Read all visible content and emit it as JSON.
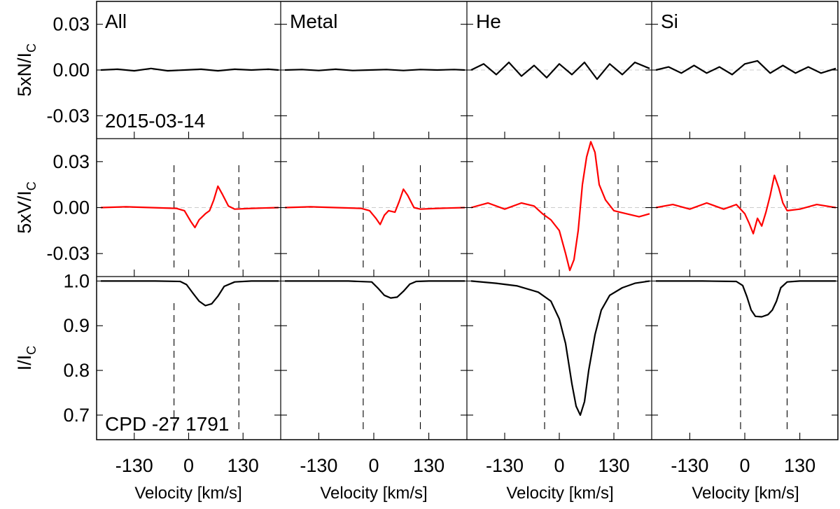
{
  "chart_data": {
    "type": "line",
    "star": "CPD -27 1791",
    "date": "2015-03-14",
    "columns": [
      "All",
      "Metal",
      "He",
      "Si"
    ],
    "xlabel": "Velocity [km/s]",
    "xticks": [
      -130,
      0,
      130
    ],
    "xlim": [
      -220,
      220
    ],
    "rows": [
      {
        "key": "N",
        "ylabel_main": "5xN/I",
        "ylabel_sub": "C",
        "ylim": [
          -0.045,
          0.045
        ],
        "yticks": [
          0.03,
          0.0,
          -0.03
        ],
        "ytick_labels": [
          "0.03",
          "0.00",
          "-0.03"
        ],
        "color": "#000000"
      },
      {
        "key": "V",
        "ylabel_main": "5xV/I",
        "ylabel_sub": "C",
        "ylim": [
          -0.045,
          0.045
        ],
        "yticks": [
          0.03,
          0.0,
          -0.03
        ],
        "ytick_labels": [
          "0.03",
          "0.00",
          "-0.03"
        ],
        "color": "#ff0000"
      },
      {
        "key": "I",
        "ylabel_main": "I/I",
        "ylabel_sub": "C",
        "ylim": [
          0.645,
          1.01
        ],
        "yticks": [
          1.0,
          0.9,
          0.8,
          0.7
        ],
        "ytick_labels": [
          "1.0",
          "0.9",
          "0.8",
          "0.7"
        ],
        "color": "#000000"
      }
    ],
    "integration_limits": {
      "All": [
        -35,
        120
      ],
      "Metal": [
        -25,
        110
      ],
      "He": [
        -35,
        140
      ],
      "Si": [
        -10,
        100
      ]
    },
    "series": {
      "All": {
        "N": {
          "x": [
            -210,
            -170,
            -130,
            -90,
            -50,
            -10,
            30,
            70,
            110,
            150,
            190,
            215
          ],
          "y": [
            0.0,
            0.0005,
            -0.0005,
            0.001,
            -0.0005,
            0.0,
            0.0005,
            -0.0005,
            0.0005,
            0.0,
            0.0005,
            0.0
          ]
        },
        "V": {
          "x": [
            -210,
            -150,
            -90,
            -30,
            -10,
            5,
            15,
            25,
            40,
            50,
            60,
            70,
            80,
            95,
            110,
            150,
            215
          ],
          "y": [
            0.0,
            0.0005,
            0.0,
            -0.0005,
            -0.002,
            -0.009,
            -0.013,
            -0.008,
            -0.004,
            -0.002,
            0.005,
            0.014,
            0.009,
            0.001,
            -0.001,
            -0.0005,
            0.0
          ]
        },
        "I": {
          "x": [
            -210,
            -80,
            -20,
            -5,
            10,
            25,
            40,
            55,
            70,
            85,
            110,
            150,
            215
          ],
          "y": [
            1.0,
            1.0,
            0.999,
            0.992,
            0.973,
            0.955,
            0.945,
            0.949,
            0.966,
            0.988,
            0.998,
            1.0,
            1.0
          ]
        }
      },
      "Metal": {
        "N": {
          "x": [
            -210,
            -170,
            -130,
            -90,
            -50,
            -10,
            30,
            70,
            110,
            150,
            190,
            215
          ],
          "y": [
            0.0,
            0.0003,
            -0.0003,
            0.0005,
            -0.0003,
            0.0,
            0.0003,
            -0.0003,
            0.0003,
            0.0,
            0.0003,
            0.0
          ]
        },
        "V": {
          "x": [
            -210,
            -150,
            -90,
            -30,
            -10,
            5,
            15,
            25,
            35,
            50,
            60,
            70,
            80,
            95,
            110,
            150,
            215
          ],
          "y": [
            0.0,
            0.0005,
            0.0,
            -0.0005,
            -0.002,
            -0.007,
            -0.011,
            -0.005,
            -0.002,
            -0.003,
            0.004,
            0.012,
            0.008,
            0.0,
            -0.001,
            -0.0005,
            0.0
          ]
        },
        "I": {
          "x": [
            -210,
            -60,
            -5,
            10,
            25,
            40,
            55,
            70,
            85,
            100,
            130,
            215
          ],
          "y": [
            1.0,
            1.0,
            0.998,
            0.984,
            0.968,
            0.962,
            0.964,
            0.977,
            0.993,
            0.999,
            1.0,
            1.0
          ]
        }
      },
      "He": {
        "N": {
          "x": [
            -210,
            -180,
            -150,
            -120,
            -90,
            -60,
            -30,
            0,
            30,
            60,
            90,
            120,
            150,
            180,
            215
          ],
          "y": [
            0.0,
            0.004,
            -0.003,
            0.005,
            -0.004,
            0.003,
            -0.005,
            0.004,
            -0.003,
            0.005,
            -0.006,
            0.004,
            -0.003,
            0.005,
            0.001
          ]
        },
        "V": {
          "x": [
            -210,
            -170,
            -130,
            -90,
            -60,
            -40,
            -20,
            0,
            15,
            25,
            35,
            45,
            55,
            65,
            75,
            85,
            95,
            110,
            130,
            160,
            190,
            215
          ],
          "y": [
            0.0,
            0.003,
            -0.001,
            0.003,
            0.001,
            -0.004,
            -0.008,
            -0.015,
            -0.03,
            -0.041,
            -0.034,
            -0.015,
            0.015,
            0.033,
            0.043,
            0.036,
            0.015,
            0.005,
            -0.002,
            -0.004,
            -0.006,
            -0.004
          ]
        },
        "I": {
          "x": [
            -210,
            -150,
            -100,
            -50,
            -20,
            0,
            15,
            30,
            40,
            50,
            60,
            70,
            85,
            100,
            120,
            150,
            180,
            215
          ],
          "y": [
            1.0,
            0.995,
            0.989,
            0.975,
            0.955,
            0.915,
            0.86,
            0.77,
            0.72,
            0.7,
            0.73,
            0.8,
            0.88,
            0.935,
            0.968,
            0.985,
            0.995,
            1.0
          ]
        }
      },
      "Si": {
        "N": {
          "x": [
            -210,
            -180,
            -150,
            -120,
            -90,
            -60,
            -30,
            0,
            30,
            60,
            90,
            120,
            150,
            180,
            215
          ],
          "y": [
            0.0,
            0.002,
            -0.002,
            0.003,
            -0.002,
            0.002,
            -0.003,
            0.004,
            0.006,
            -0.002,
            0.003,
            -0.002,
            0.002,
            -0.002,
            0.001
          ]
        },
        "V": {
          "x": [
            -210,
            -170,
            -130,
            -90,
            -50,
            -20,
            0,
            10,
            20,
            30,
            40,
            50,
            60,
            70,
            80,
            90,
            100,
            130,
            170,
            215
          ],
          "y": [
            0.0,
            0.002,
            -0.001,
            0.003,
            -0.001,
            0.002,
            -0.004,
            -0.01,
            -0.017,
            -0.007,
            -0.012,
            -0.003,
            0.008,
            0.021,
            0.013,
            0.003,
            -0.002,
            -0.001,
            0.002,
            0.0
          ]
        },
        "I": {
          "x": [
            -210,
            -100,
            -20,
            -5,
            5,
            15,
            25,
            40,
            55,
            65,
            75,
            85,
            100,
            130,
            215
          ],
          "y": [
            1.0,
            1.0,
            0.999,
            0.99,
            0.965,
            0.935,
            0.921,
            0.92,
            0.925,
            0.935,
            0.955,
            0.985,
            0.998,
            1.0,
            1.0
          ]
        }
      }
    }
  }
}
